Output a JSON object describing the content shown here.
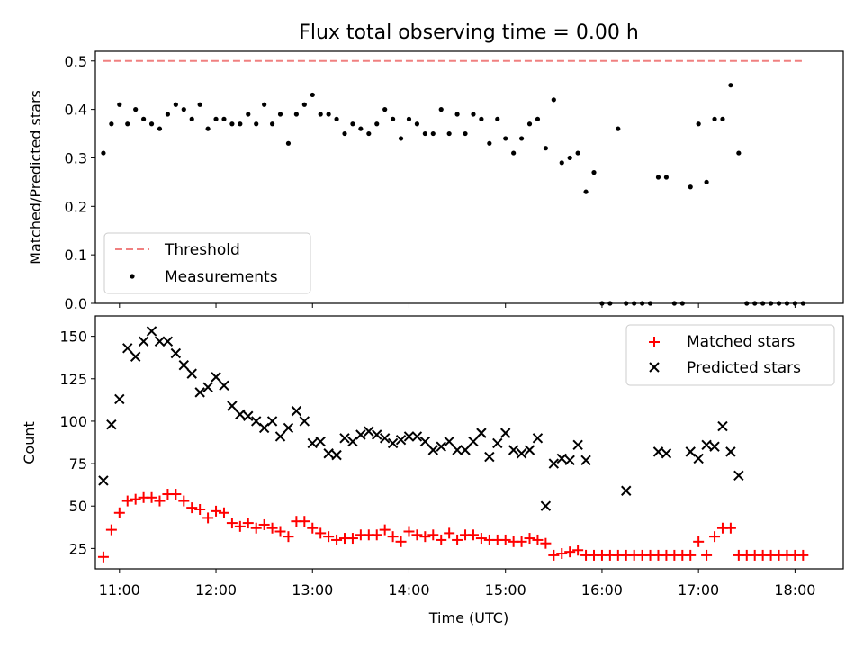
{
  "chart_data": [
    {
      "type": "scatter",
      "title": "Flux total observing time = 0.00 h",
      "xlabel": "",
      "ylabel": "Matched/Predicted stars",
      "xlim": [
        "10:45",
        "18:30"
      ],
      "ylim": [
        0,
        0.52
      ],
      "yticks": [
        0.0,
        0.1,
        0.2,
        0.3,
        0.4,
        0.5
      ],
      "yticklabels": [
        "0.0",
        "0.1",
        "0.2",
        "0.3",
        "0.4",
        "0.5"
      ],
      "legend_position": "lower-left",
      "threshold": {
        "name": "Threshold",
        "value": 0.5,
        "x": [
          "10:50",
          "18:05"
        ],
        "color": "#f08080",
        "style": "dashed"
      },
      "series": [
        {
          "name": "Measurements",
          "color": "#000000",
          "marker": "dot",
          "x": [
            "10:50",
            "10:55",
            "11:00",
            "11:05",
            "11:10",
            "11:15",
            "11:20",
            "11:25",
            "11:30",
            "11:35",
            "11:40",
            "11:45",
            "11:50",
            "11:55",
            "12:00",
            "12:05",
            "12:10",
            "12:15",
            "12:20",
            "12:25",
            "12:30",
            "12:35",
            "12:40",
            "12:45",
            "12:50",
            "12:55",
            "13:00",
            "13:05",
            "13:10",
            "13:15",
            "13:20",
            "13:25",
            "13:30",
            "13:35",
            "13:40",
            "13:45",
            "13:50",
            "13:55",
            "14:00",
            "14:05",
            "14:10",
            "14:15",
            "14:20",
            "14:25",
            "14:30",
            "14:35",
            "14:40",
            "14:45",
            "14:50",
            "14:55",
            "15:00",
            "15:05",
            "15:10",
            "15:15",
            "15:20",
            "15:25",
            "15:30",
            "15:35",
            "15:40",
            "15:45",
            "15:50",
            "15:55",
            "16:00",
            "16:05",
            "16:10",
            "16:15",
            "16:20",
            "16:25",
            "16:30",
            "16:35",
            "16:40",
            "16:45",
            "16:50",
            "16:55",
            "17:00",
            "17:05",
            "17:10",
            "17:15",
            "17:20",
            "17:25",
            "17:30",
            "17:35",
            "17:40",
            "17:45",
            "17:50",
            "17:55",
            "18:00",
            "18:05"
          ],
          "y": [
            0.31,
            0.37,
            0.41,
            0.37,
            0.4,
            0.38,
            0.37,
            0.36,
            0.39,
            0.41,
            0.4,
            0.38,
            0.41,
            0.36,
            0.38,
            0.38,
            0.37,
            0.37,
            0.39,
            0.37,
            0.41,
            0.37,
            0.39,
            0.33,
            0.39,
            0.41,
            0.43,
            0.39,
            0.39,
            0.38,
            0.35,
            0.37,
            0.36,
            0.35,
            0.37,
            0.4,
            0.38,
            0.34,
            0.38,
            0.37,
            0.35,
            0.35,
            0.4,
            0.35,
            0.39,
            0.35,
            0.39,
            0.38,
            0.33,
            0.38,
            0.34,
            0.31,
            0.34,
            0.37,
            0.38,
            0.32,
            0.42,
            0.29,
            0.3,
            0.31,
            0.23,
            0.27,
            0.0,
            0.0,
            0.36,
            0.0,
            0.0,
            0.0,
            0.0,
            0.26,
            0.26,
            0.0,
            0.0,
            0.24,
            0.37,
            0.25,
            0.38,
            0.38,
            0.45,
            0.31,
            0.0,
            0.0,
            0.0,
            0.0,
            0.0,
            0.0,
            0.0,
            0.0
          ]
        }
      ]
    },
    {
      "type": "scatter",
      "title": "",
      "xlabel": "Time (UTC)",
      "ylabel": "Count",
      "xlim": [
        "10:45",
        "18:30"
      ],
      "ylim": [
        13,
        162
      ],
      "yticks": [
        25,
        50,
        75,
        100,
        125,
        150
      ],
      "yticklabels": [
        "25",
        "50",
        "75",
        "100",
        "125",
        "150"
      ],
      "xticks": [
        "11:00",
        "12:00",
        "13:00",
        "14:00",
        "15:00",
        "16:00",
        "17:00",
        "18:00"
      ],
      "legend_position": "top-right",
      "series": [
        {
          "name": "Matched stars",
          "color": "#ff0000",
          "marker": "plus",
          "x": [
            "10:50",
            "10:55",
            "11:00",
            "11:05",
            "11:10",
            "11:15",
            "11:20",
            "11:25",
            "11:30",
            "11:35",
            "11:40",
            "11:45",
            "11:50",
            "11:55",
            "12:00",
            "12:05",
            "12:10",
            "12:15",
            "12:20",
            "12:25",
            "12:30",
            "12:35",
            "12:40",
            "12:45",
            "12:50",
            "12:55",
            "13:00",
            "13:05",
            "13:10",
            "13:15",
            "13:20",
            "13:25",
            "13:30",
            "13:35",
            "13:40",
            "13:45",
            "13:50",
            "13:55",
            "14:00",
            "14:05",
            "14:10",
            "14:15",
            "14:20",
            "14:25",
            "14:30",
            "14:35",
            "14:40",
            "14:45",
            "14:50",
            "14:55",
            "15:00",
            "15:05",
            "15:10",
            "15:15",
            "15:20",
            "15:25",
            "15:30",
            "15:35",
            "15:40",
            "15:45",
            "15:50",
            "15:55",
            "16:00",
            "16:05",
            "16:10",
            "16:15",
            "16:20",
            "16:25",
            "16:30",
            "16:35",
            "16:40",
            "16:45",
            "16:50",
            "16:55",
            "17:00",
            "17:05",
            "17:10",
            "17:15",
            "17:20",
            "17:25",
            "17:30",
            "17:35",
            "17:40",
            "17:45",
            "17:50",
            "17:55",
            "18:00",
            "18:05"
          ],
          "y": [
            20,
            36,
            46,
            53,
            54,
            55,
            55,
            53,
            57,
            57,
            53,
            49,
            48,
            43,
            47,
            46,
            40,
            38,
            40,
            37,
            39,
            37,
            35,
            32,
            41,
            41,
            37,
            34,
            32,
            30,
            31,
            31,
            33,
            33,
            33,
            36,
            32,
            29,
            35,
            33,
            32,
            33,
            30,
            34,
            30,
            33,
            33,
            31,
            30,
            30,
            30,
            29,
            29,
            31,
            30,
            28,
            21,
            22,
            23,
            24,
            21,
            21,
            21,
            21,
            21,
            21,
            21,
            21,
            21,
            21,
            21,
            21,
            21,
            21,
            29,
            21,
            32,
            37,
            37,
            21,
            21,
            21,
            21,
            21,
            21,
            21,
            21,
            21
          ]
        },
        {
          "name": "Predicted stars",
          "color": "#000000",
          "marker": "x",
          "x": [
            "10:50",
            "10:55",
            "11:00",
            "11:05",
            "11:10",
            "11:15",
            "11:20",
            "11:25",
            "11:30",
            "11:35",
            "11:40",
            "11:45",
            "11:50",
            "11:55",
            "12:00",
            "12:05",
            "12:10",
            "12:15",
            "12:20",
            "12:25",
            "12:30",
            "12:35",
            "12:40",
            "12:45",
            "12:50",
            "12:55",
            "13:00",
            "13:05",
            "13:10",
            "13:15",
            "13:20",
            "13:25",
            "13:30",
            "13:35",
            "13:40",
            "13:45",
            "13:50",
            "13:55",
            "14:00",
            "14:05",
            "14:10",
            "14:15",
            "14:20",
            "14:25",
            "14:30",
            "14:35",
            "14:40",
            "14:45",
            "14:50",
            "14:55",
            "15:00",
            "15:05",
            "15:10",
            "15:15",
            "15:20",
            "15:25",
            "15:30",
            "15:35",
            "15:40",
            "15:45",
            "15:50",
            "16:15",
            "16:35",
            "16:40",
            "16:55",
            "17:00",
            "17:05",
            "17:10",
            "17:15",
            "17:20",
            "17:25"
          ],
          "y": [
            65,
            98,
            113,
            143,
            138,
            147,
            153,
            147,
            147,
            140,
            133,
            128,
            117,
            120,
            126,
            121,
            109,
            104,
            103,
            100,
            96,
            100,
            91,
            96,
            106,
            100,
            87,
            88,
            81,
            80,
            90,
            88,
            92,
            94,
            92,
            90,
            87,
            89,
            91,
            91,
            88,
            83,
            85,
            88,
            83,
            83,
            88,
            93,
            79,
            87,
            93,
            83,
            81,
            83,
            90,
            50,
            75,
            78,
            77,
            86,
            77,
            59,
            82,
            81,
            82,
            78,
            86,
            85,
            97,
            82,
            68
          ]
        }
      ]
    }
  ]
}
